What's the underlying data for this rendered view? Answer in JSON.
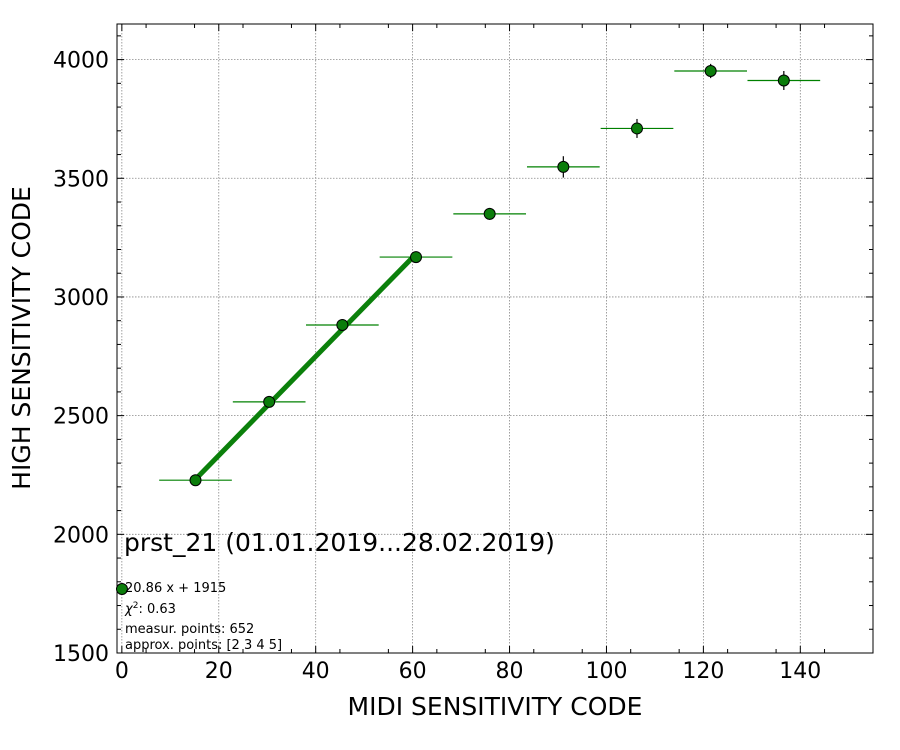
{
  "chart_data": {
    "type": "scatter",
    "xlabel": "MIDI SENSITIVITY CODE",
    "ylabel": "HIGH SENSITIVITY CODE",
    "xlim": [
      -1,
      155
    ],
    "ylim": [
      1500,
      4150
    ],
    "xticks": [
      0,
      20,
      40,
      60,
      80,
      100,
      120,
      140
    ],
    "yticks": [
      1500,
      2000,
      2500,
      3000,
      3500,
      4000
    ],
    "grid": true,
    "points": [
      {
        "x": 15.2,
        "y": 2228,
        "xerr": 7.5,
        "yerr": 15
      },
      {
        "x": 30.4,
        "y": 2558,
        "xerr": 7.5,
        "yerr": 15
      },
      {
        "x": 45.5,
        "y": 2882,
        "xerr": 7.5,
        "yerr": 20
      },
      {
        "x": 60.7,
        "y": 3168,
        "xerr": 7.5,
        "yerr": 20
      },
      {
        "x": 75.9,
        "y": 3350,
        "xerr": 7.5,
        "yerr": 25
      },
      {
        "x": 91.1,
        "y": 3548,
        "xerr": 7.5,
        "yerr": 45
      },
      {
        "x": 106.3,
        "y": 3710,
        "xerr": 7.5,
        "yerr": 40
      },
      {
        "x": 121.5,
        "y": 3952,
        "xerr": 7.5,
        "yerr": 30
      },
      {
        "x": 136.6,
        "y": 3912,
        "xerr": 7.5,
        "yerr": 40
      }
    ],
    "fit_line": {
      "slope": 20.86,
      "intercept": 1915,
      "x_range": [
        15.2,
        60.7
      ]
    },
    "colors": {
      "marker": "#0b7d0b",
      "errorbar": "#008000",
      "fit": "#0b800b",
      "grid": "#888888"
    },
    "annotation_title": "prst_21 (01.01.2019...28.02.2019)",
    "legend": {
      "fit_label": "20.86 x + 1915",
      "chi2_symbol": "χ",
      "chi2_sup": "2",
      "chi2_value": ": 0.63",
      "measur_points": "measur. points: 652",
      "approx_points": "approx. points: [2 3 4 5]"
    }
  }
}
